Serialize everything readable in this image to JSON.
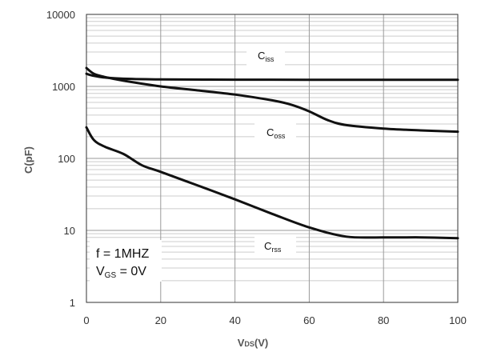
{
  "chart_data": {
    "type": "line",
    "title": "",
    "xlabel": {
      "main": "V",
      "sub": "DS",
      "tail": "(V)"
    },
    "ylabel": "C(pF)",
    "xlim": [
      0,
      100
    ],
    "ylim": [
      1,
      10000
    ],
    "yscale": "log",
    "grid": true,
    "x_ticks": [
      "0",
      "20",
      "40",
      "60",
      "80",
      "100"
    ],
    "y_ticks": [
      "1",
      "10",
      "100",
      "1000",
      "10000"
    ],
    "annotations": {
      "freq": "f = 1MHZ",
      "vgs_main": "V",
      "vgs_sub": "GS",
      "vgs_tail": " = 0V"
    },
    "series": [
      {
        "name": "Ciss",
        "label_main": "C",
        "label_sub": "iss",
        "x": [
          0,
          2,
          5,
          10,
          20,
          40,
          60,
          80,
          100
        ],
        "values": [
          1500,
          1400,
          1330,
          1280,
          1250,
          1240,
          1235,
          1235,
          1235
        ]
      },
      {
        "name": "Coss",
        "label_main": "C",
        "label_sub": "oss",
        "x": [
          0,
          2,
          5,
          10,
          20,
          30,
          40,
          50,
          55,
          60,
          65,
          70,
          80,
          90,
          100
        ],
        "values": [
          1800,
          1500,
          1350,
          1200,
          1000,
          880,
          770,
          640,
          560,
          450,
          340,
          290,
          260,
          245,
          235
        ]
      },
      {
        "name": "Crss",
        "label_main": "C",
        "label_sub": "rss",
        "x": [
          0,
          2,
          5,
          10,
          15,
          20,
          30,
          40,
          50,
          60,
          70,
          80,
          90,
          100
        ],
        "values": [
          270,
          180,
          145,
          115,
          80,
          65,
          42,
          27,
          17,
          11,
          8.2,
          8,
          8,
          7.8
        ]
      }
    ],
    "colors": {
      "line": "#111111",
      "grid_major": "#9a9a9a",
      "grid_minor": "#cccccc",
      "frame": "#333333"
    }
  }
}
